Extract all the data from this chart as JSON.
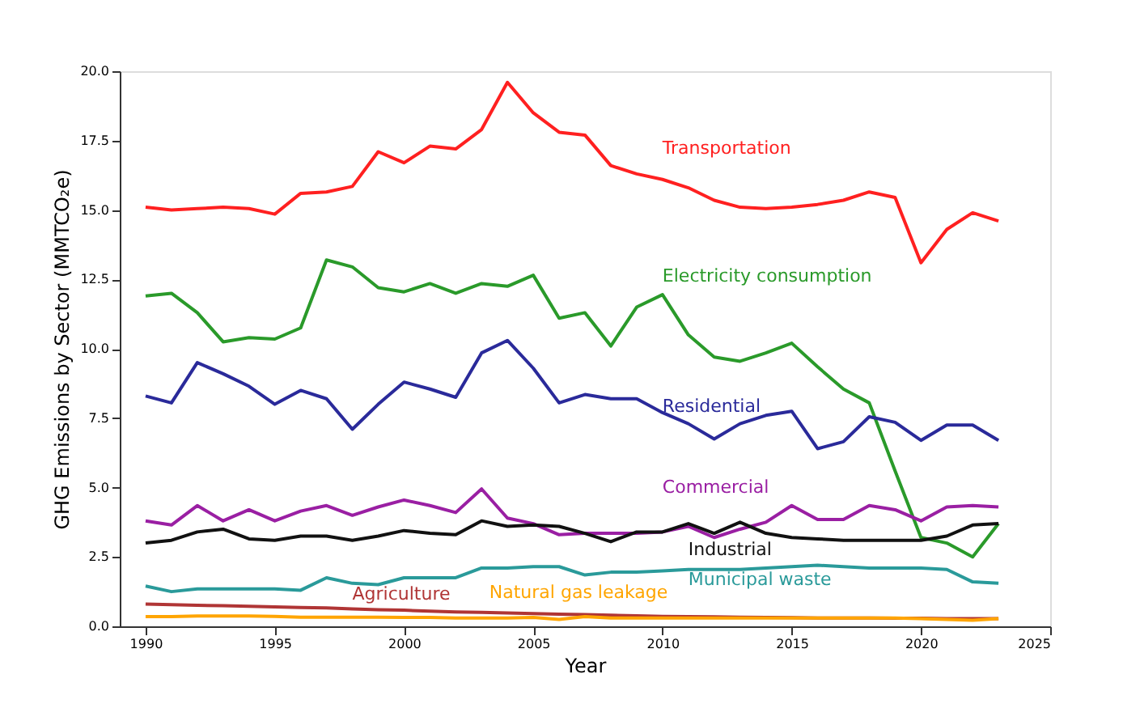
{
  "chart_data": {
    "type": "line",
    "xlabel": "Year",
    "ylabel": "GHG Emissions by Sector (MMTCO₂e)",
    "x": [
      1990,
      1991,
      1992,
      1993,
      1994,
      1995,
      1996,
      1997,
      1998,
      1999,
      2000,
      2001,
      2002,
      2003,
      2004,
      2005,
      2006,
      2007,
      2008,
      2009,
      2010,
      2011,
      2012,
      2013,
      2014,
      2015,
      2016,
      2017,
      2018,
      2019,
      2020,
      2021,
      2022,
      2023
    ],
    "xlim": [
      1989,
      2025
    ],
    "xticks": [
      1990,
      1995,
      2000,
      2005,
      2010,
      2015,
      2020,
      2025
    ],
    "ylim": [
      0,
      20
    ],
    "yticks": [
      {
        "value": 0,
        "label": "0.0"
      },
      {
        "value": 2.5,
        "label": "2.5"
      },
      {
        "value": 5,
        "label": "5.0"
      },
      {
        "value": 7.5,
        "label": "7.5"
      },
      {
        "value": 10,
        "label": "10.0"
      },
      {
        "value": 12.5,
        "label": "12.5"
      },
      {
        "value": 15,
        "label": "15.0"
      },
      {
        "value": 17.5,
        "label": "17.5"
      },
      {
        "value": 20,
        "label": "20.0"
      }
    ],
    "grid": false,
    "marker": "none",
    "line_style": "solid",
    "series": [
      {
        "name": "Transportation",
        "color": "#ff2020",
        "values": [
          15.1,
          15.0,
          15.05,
          15.1,
          15.05,
          14.85,
          15.6,
          15.65,
          15.85,
          17.1,
          16.7,
          17.3,
          17.2,
          17.9,
          19.6,
          18.5,
          17.8,
          17.7,
          16.6,
          16.3,
          16.1,
          15.8,
          15.35,
          15.1,
          15.05,
          15.1,
          15.2,
          15.35,
          15.65,
          15.45,
          13.1,
          14.3,
          14.9,
          14.6
        ]
      },
      {
        "name": "Electricity consumption",
        "color": "#2a9a2a",
        "values": [
          11.9,
          12.0,
          11.3,
          10.25,
          10.4,
          10.35,
          10.75,
          13.2,
          12.95,
          12.2,
          12.05,
          12.35,
          12.0,
          12.35,
          12.25,
          12.65,
          11.1,
          11.3,
          10.1,
          11.5,
          11.95,
          10.5,
          9.7,
          9.55,
          9.85,
          10.2,
          9.35,
          8.55,
          8.05,
          5.6,
          3.2,
          3.0,
          2.5,
          3.7
        ]
      },
      {
        "name": "Residential",
        "color": "#2a2a9a",
        "values": [
          8.3,
          8.05,
          9.5,
          9.1,
          8.65,
          8.0,
          8.5,
          8.2,
          7.1,
          8.0,
          8.8,
          8.55,
          8.25,
          9.85,
          10.3,
          9.3,
          8.05,
          8.35,
          8.2,
          8.2,
          7.7,
          7.3,
          6.75,
          7.3,
          7.6,
          7.75,
          6.4,
          6.65,
          7.55,
          7.35,
          6.7,
          7.25,
          7.25,
          6.7
        ]
      },
      {
        "name": "Commercial",
        "color": "#9a1fa3",
        "values": [
          3.8,
          3.65,
          4.35,
          3.8,
          4.2,
          3.8,
          4.15,
          4.35,
          4.0,
          4.3,
          4.55,
          4.35,
          4.1,
          4.95,
          3.9,
          3.7,
          3.3,
          3.35,
          3.35,
          3.35,
          3.4,
          3.6,
          3.2,
          3.5,
          3.75,
          4.35,
          3.85,
          3.85,
          4.35,
          4.2,
          3.8,
          4.3,
          4.35,
          4.3
        ]
      },
      {
        "name": "Industrial",
        "color": "#111111",
        "values": [
          3.0,
          3.1,
          3.4,
          3.5,
          3.15,
          3.1,
          3.25,
          3.25,
          3.1,
          3.25,
          3.45,
          3.35,
          3.3,
          3.8,
          3.6,
          3.65,
          3.6,
          3.35,
          3.05,
          3.4,
          3.4,
          3.7,
          3.35,
          3.75,
          3.35,
          3.2,
          3.15,
          3.1,
          3.1,
          3.1,
          3.1,
          3.25,
          3.65,
          3.7
        ]
      },
      {
        "name": "Municipal waste",
        "color": "#2a9a9a",
        "values": [
          1.45,
          1.25,
          1.35,
          1.35,
          1.35,
          1.35,
          1.3,
          1.75,
          1.55,
          1.5,
          1.75,
          1.75,
          1.75,
          2.1,
          2.1,
          2.15,
          2.15,
          1.85,
          1.95,
          1.95,
          2.0,
          2.05,
          2.05,
          2.05,
          2.1,
          2.15,
          2.2,
          2.15,
          2.1,
          2.1,
          2.1,
          2.05,
          1.6,
          1.55
        ]
      },
      {
        "name": "Agriculture",
        "color": "#b03535",
        "values": [
          0.8,
          0.78,
          0.76,
          0.74,
          0.72,
          0.7,
          0.68,
          0.66,
          0.63,
          0.6,
          0.58,
          0.55,
          0.52,
          0.5,
          0.48,
          0.46,
          0.44,
          0.42,
          0.4,
          0.38,
          0.36,
          0.35,
          0.34,
          0.33,
          0.32,
          0.31,
          0.3,
          0.3,
          0.3,
          0.29,
          0.29,
          0.28,
          0.28,
          0.28
        ]
      },
      {
        "name": "Natural gas leakage",
        "color": "#ffa500",
        "values": [
          0.35,
          0.35,
          0.37,
          0.37,
          0.37,
          0.36,
          0.33,
          0.33,
          0.33,
          0.33,
          0.32,
          0.32,
          0.3,
          0.3,
          0.3,
          0.32,
          0.25,
          0.35,
          0.3,
          0.3,
          0.3,
          0.3,
          0.3,
          0.3,
          0.3,
          0.3,
          0.3,
          0.3,
          0.3,
          0.3,
          0.28,
          0.25,
          0.22,
          0.28
        ]
      }
    ]
  }
}
